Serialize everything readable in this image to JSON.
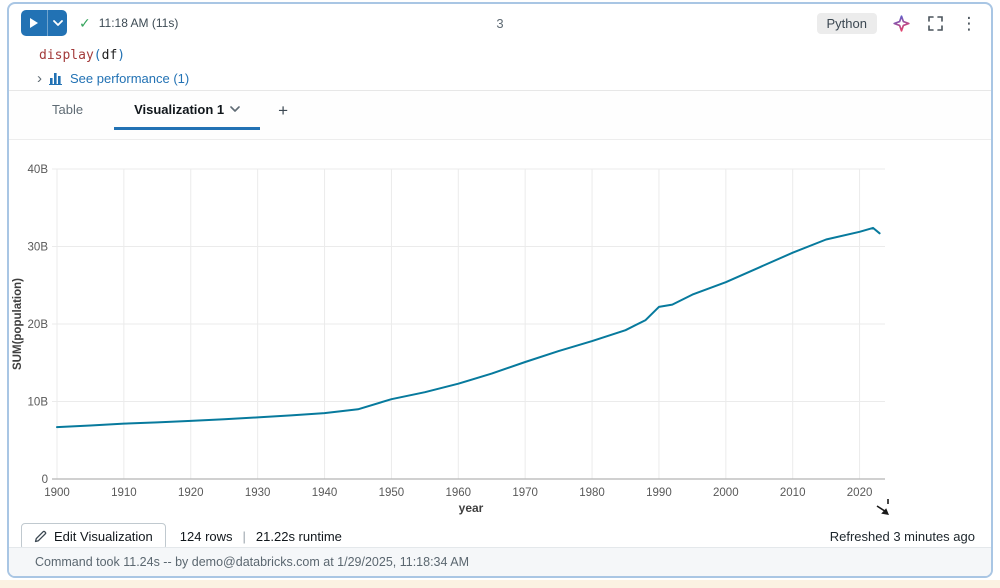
{
  "cell": {
    "number": "3",
    "header": {
      "timestamp": "11:18 AM (11s)",
      "language": "Python",
      "check_icon": "✓",
      "kebab_icon": "⋮"
    },
    "code": {
      "function": "display",
      "paren_open": "(",
      "arg": "df",
      "paren_close": ")"
    },
    "performance": {
      "caret": "›",
      "label": "See performance (1)"
    }
  },
  "tabs": {
    "table_label": "Table",
    "active_label": "Visualization 1",
    "add_label": "+"
  },
  "result_bar": {
    "edit_button": "Edit Visualization",
    "rows": "124 rows",
    "separator": "|",
    "runtime": "21.22s runtime",
    "refreshed": "Refreshed 3 minutes ago"
  },
  "status_bar": {
    "text": "Command took 11.24s -- by demo@databricks.com at 1/29/2025, 11:18:34 AM"
  },
  "colors": {
    "accent_blue": "#2272b4",
    "line_color": "#077a9d",
    "grid_color": "#ebebeb",
    "axis_color": "#b5b5b5",
    "tick_text": "#595959",
    "axis_label_text": "#3f3f3f",
    "cell_border": "#a9c6e4",
    "check_green": "#35a45c"
  },
  "chart_data": {
    "type": "line",
    "title": "",
    "xlabel": "year",
    "ylabel": "SUM(population)",
    "x_ticks": [
      1900,
      1910,
      1920,
      1930,
      1940,
      1950,
      1960,
      1970,
      1980,
      1990,
      2000,
      2010,
      2020
    ],
    "y_ticks": [
      {
        "value": 40,
        "label": "40B"
      },
      {
        "value": 30,
        "label": "30B"
      },
      {
        "value": 20,
        "label": "20B"
      },
      {
        "value": 10,
        "label": "10B"
      },
      {
        "value": 0,
        "label": "0"
      }
    ],
    "xlim": [
      1900,
      2023.8
    ],
    "ylim": [
      0,
      40
    ],
    "value_unit": "billions",
    "grid": true,
    "legend": "none",
    "series": [
      {
        "name": "SUM(population)",
        "color": "#077a9d",
        "points": [
          [
            1900,
            6.7
          ],
          [
            1905,
            6.9
          ],
          [
            1910,
            7.15
          ],
          [
            1915,
            7.3
          ],
          [
            1920,
            7.5
          ],
          [
            1925,
            7.7
          ],
          [
            1930,
            7.95
          ],
          [
            1935,
            8.2
          ],
          [
            1940,
            8.5
          ],
          [
            1945,
            9.0
          ],
          [
            1950,
            10.3
          ],
          [
            1955,
            11.2
          ],
          [
            1960,
            12.3
          ],
          [
            1965,
            13.6
          ],
          [
            1970,
            15.1
          ],
          [
            1975,
            16.5
          ],
          [
            1980,
            17.8
          ],
          [
            1985,
            19.2
          ],
          [
            1988,
            20.5
          ],
          [
            1990,
            22.2
          ],
          [
            1992,
            22.5
          ],
          [
            1995,
            23.8
          ],
          [
            2000,
            25.4
          ],
          [
            2005,
            27.3
          ],
          [
            2010,
            29.2
          ],
          [
            2015,
            30.9
          ],
          [
            2020,
            31.9
          ],
          [
            2022,
            32.4
          ],
          [
            2023,
            31.7
          ]
        ]
      }
    ]
  }
}
